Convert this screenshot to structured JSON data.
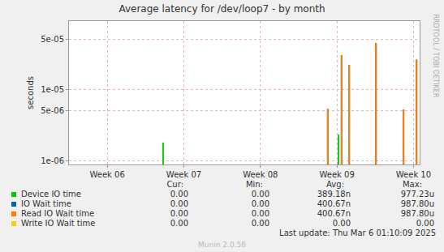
{
  "chart_data": {
    "type": "bar",
    "title": "Average latency for /dev/loop7 - by month",
    "y_label": "seconds",
    "log": "y",
    "grid": true,
    "xlim": [
      5.5,
      10.08
    ],
    "xticks": [
      {
        "value": 6,
        "label": "Week 06"
      },
      {
        "value": 7,
        "label": "Week 07"
      },
      {
        "value": 8,
        "label": "Week 08"
      },
      {
        "value": 9,
        "label": "Week 09"
      },
      {
        "value": 10,
        "label": "Week 10"
      }
    ],
    "ylim": [
      8.8e-07,
      9e-05
    ],
    "yticks": [
      {
        "value": 1e-06,
        "label": "1e-06"
      },
      {
        "value": 5e-06,
        "label": "5e-06"
      },
      {
        "value": 1e-05,
        "label": "1e-05"
      },
      {
        "value": 5e-05,
        "label": "5e-05"
      }
    ],
    "stat_columns": [
      "Cur:",
      "Min:",
      "Avg:",
      "Max:"
    ],
    "series": [
      {
        "name": "Device IO time",
        "color": "#00cc00",
        "x": [
          6.73,
          9.02
        ],
        "values": [
          1.78e-06,
          2.31e-06
        ],
        "stats": [
          "0.00",
          "0.00",
          "389.18n",
          "977.23u"
        ]
      },
      {
        "name": "IO Wait time",
        "color": "#0066b3",
        "x": [
          8.88,
          9.06,
          9.16,
          9.51,
          9.87,
          10.04
        ],
        "values": [
          5.3e-06,
          3e-05,
          2.19e-05,
          4.4e-05,
          5.2e-06,
          2.6e-05
        ],
        "stats": [
          "0.00",
          "0.00",
          "400.67n",
          "987.80u"
        ]
      },
      {
        "name": "Read IO Wait time",
        "color": "#ff8000",
        "x": [
          8.88,
          9.06,
          9.16,
          9.51,
          9.87,
          10.04
        ],
        "values": [
          5.3e-06,
          3e-05,
          2.19e-05,
          4.4e-05,
          5.2e-06,
          2.6e-05
        ],
        "stats": [
          "0.00",
          "0.00",
          "400.67n",
          "987.80u"
        ]
      },
      {
        "name": "Write IO Wait time",
        "color": "#ffcc00",
        "x": [],
        "values": [],
        "stats": [
          "0.00",
          "0.00",
          "0.00",
          "0.00"
        ]
      }
    ],
    "annotations": [
      "RRDTOOL / TOBI OETIKER",
      "Last update: Thu Mar  6 01:10:09 2025",
      "Munin 2.0.56"
    ]
  }
}
